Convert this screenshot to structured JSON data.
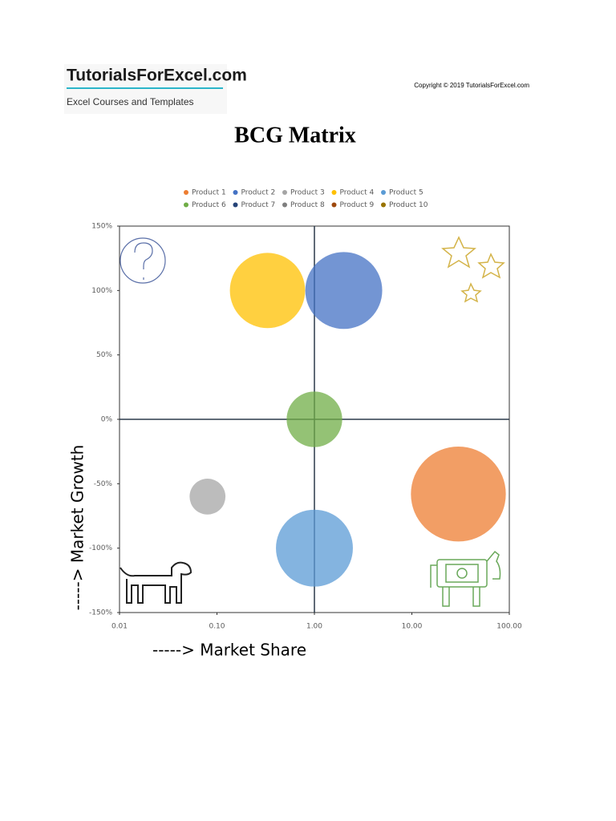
{
  "header": {
    "logo": "TutorialsForExcel.com",
    "tagline": "Excel Courses and Templates",
    "copyright": "Copyright © 2019 TutorialsForExcel.com"
  },
  "chart_data": {
    "type": "bubble",
    "title": "BCG Matrix",
    "x_label": "-----> Market Share",
    "y_label": "-----> Market Growth",
    "xscale": "log",
    "xlim": [
      0.01,
      100
    ],
    "xticks": [
      {
        "value": 0.01,
        "label": "0.01"
      },
      {
        "value": 0.1,
        "label": "0.10"
      },
      {
        "value": 1,
        "label": "1.00"
      },
      {
        "value": 10,
        "label": "10.00"
      },
      {
        "value": 100,
        "label": "100.00"
      }
    ],
    "ylim": [
      -150,
      150
    ],
    "yticks": [
      {
        "value": -150,
        "label": "-150%"
      },
      {
        "value": -100,
        "label": "-100%"
      },
      {
        "value": -50,
        "label": "-50%"
      },
      {
        "value": 0,
        "label": "0%"
      },
      {
        "value": 50,
        "label": "50%"
      },
      {
        "value": 100,
        "label": "100%"
      },
      {
        "value": 150,
        "label": "150%"
      }
    ],
    "legend": "top",
    "series": [
      {
        "name": "Product 1",
        "color": "#ED7D31",
        "x": [
          30
        ],
        "values": [
          -58
        ],
        "sizes": [
          35
        ]
      },
      {
        "name": "Product 2",
        "color": "#4472C4",
        "x": [
          2
        ],
        "values": [
          100
        ],
        "sizes": [
          23
        ]
      },
      {
        "name": "Product 3",
        "color": "#A5A5A5",
        "x": [
          0.08
        ],
        "values": [
          -60
        ],
        "sizes": [
          5
        ]
      },
      {
        "name": "Product 4",
        "color": "#FFC000",
        "x": [
          0.33
        ],
        "values": [
          100
        ],
        "sizes": [
          22
        ]
      },
      {
        "name": "Product 5",
        "color": "#5B9BD5",
        "x": [
          1
        ],
        "values": [
          -100
        ],
        "sizes": [
          23
        ]
      },
      {
        "name": "Product 6",
        "color": "#70AD47",
        "x": [
          1
        ],
        "values": [
          0
        ],
        "sizes": [
          12
        ]
      },
      {
        "name": "Product 7",
        "color": "#264478",
        "x": [],
        "values": [],
        "sizes": []
      },
      {
        "name": "Product 8",
        "color": "#7F7F7F",
        "x": [],
        "values": [],
        "sizes": []
      },
      {
        "name": "Product 9",
        "color": "#9E480E",
        "x": [],
        "values": [],
        "sizes": []
      },
      {
        "name": "Product 10",
        "color": "#997300",
        "x": [],
        "values": [],
        "sizes": []
      }
    ]
  }
}
